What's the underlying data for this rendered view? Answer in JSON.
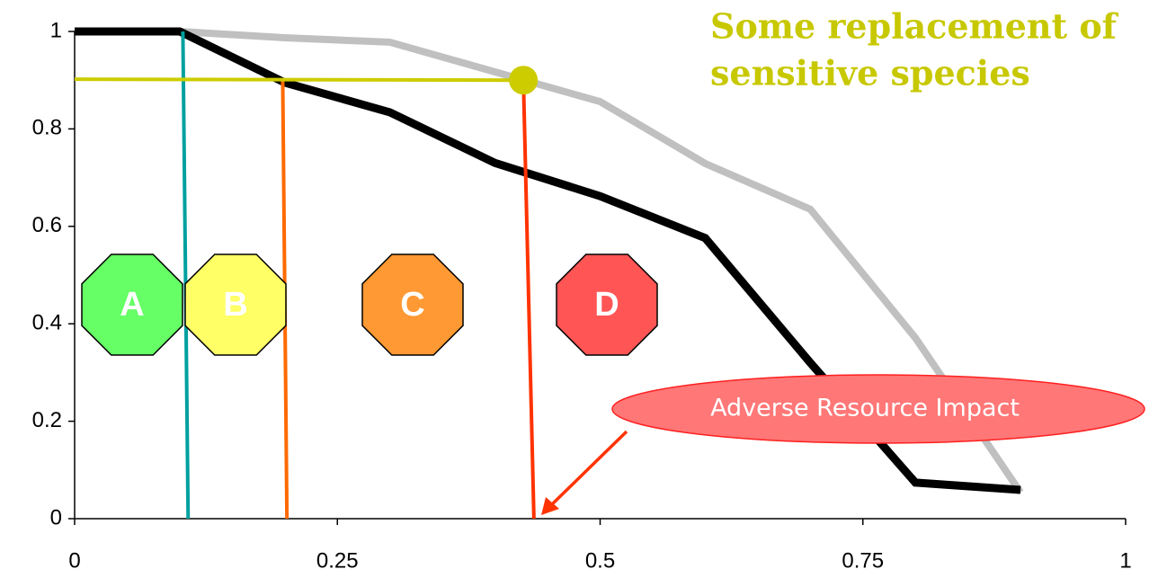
{
  "chart_data": {
    "type": "line",
    "x": [
      0,
      0.1,
      0.2,
      0.3,
      0.4,
      0.5,
      0.6,
      0.7,
      0.8,
      0.9
    ],
    "series": [
      {
        "color": "#c0c0c0",
        "values": [
          1,
          1,
          0.987,
          0.978,
          0.917,
          0.856,
          0.729,
          0.635,
          0.371,
          0.054
        ]
      },
      {
        "color": "#000000",
        "values": [
          1,
          1,
          0.895,
          0.834,
          0.73,
          0.662,
          0.576,
          0.32,
          0.074,
          0.059
        ]
      }
    ],
    "reference_lines": [
      {
        "color": "#00a0a0",
        "x": [
          0.103,
          0.108
        ],
        "y": [
          1,
          0
        ]
      },
      {
        "color": "#ff6a00",
        "x": [
          0.198,
          0.202
        ],
        "y": [
          0.9,
          0
        ]
      },
      {
        "color": "#ff3300",
        "x": [
          0.427,
          0.437
        ],
        "y": [
          0.9,
          0
        ]
      },
      {
        "color": "#cccc00",
        "x": [
          0,
          0.427
        ],
        "y": [
          0.902,
          0.9
        ]
      }
    ],
    "marker": {
      "x": 0.427,
      "y": 0.9,
      "color": "#cccc00"
    },
    "zones": [
      {
        "label": "A",
        "color": "#66ff66"
      },
      {
        "label": "B",
        "color": "#ffff66"
      },
      {
        "label": "C",
        "color": "#ff9933"
      },
      {
        "label": "D",
        "color": "#ff5555"
      }
    ],
    "annotations": [
      {
        "lines": [
          "Some replacement of",
          "sensitive species"
        ],
        "color": "#c8c800"
      },
      {
        "text": "Adverse Resource Impact",
        "color": "#ff7777"
      }
    ],
    "xlim": [
      0,
      1
    ],
    "ylim": [
      0,
      1
    ],
    "xticks": [
      0,
      0.25,
      0.5,
      0.75,
      1
    ],
    "yticks": [
      0,
      0.2,
      0.4,
      0.6,
      0.8,
      1
    ]
  }
}
